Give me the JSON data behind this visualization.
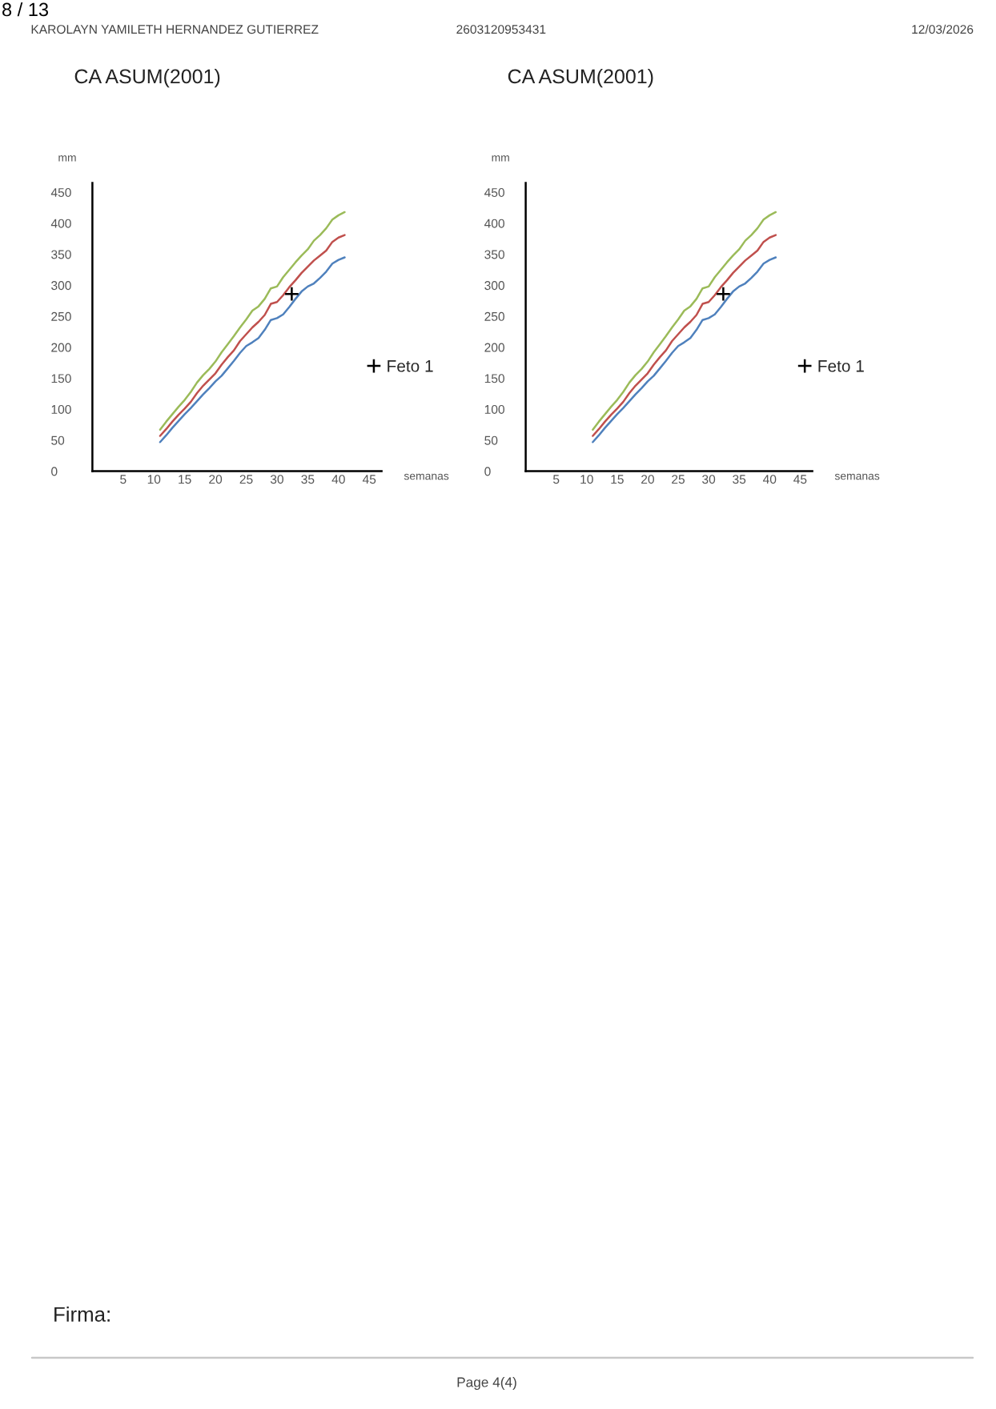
{
  "chart_data": [
    {
      "type": "line",
      "title": "CA ASUM(2001)",
      "xlabel": "semanas",
      "ylabel": "mm",
      "annotations": [
        "8 / 13",
        "KAROLAYN YAMILETH HERNANDEZ GUTIERREZ",
        "2603120953431",
        "12/03/2026",
        "Firma:",
        "Page 4(4)"
      ],
      "x": [
        11,
        12,
        13,
        14,
        15,
        16,
        17,
        18,
        19,
        20,
        21,
        22,
        23,
        24,
        25,
        26,
        27,
        28,
        29,
        30,
        31,
        32,
        33,
        34,
        35,
        36,
        37,
        38,
        39,
        40,
        41
      ],
      "series": [
        {
          "color": "#9bbb59",
          "values": [
            67,
            80,
            92,
            104,
            115,
            128,
            143,
            155,
            165,
            177,
            192,
            205,
            218,
            232,
            245,
            259,
            266,
            278,
            295,
            298,
            313,
            325,
            337,
            348,
            358,
            372,
            381,
            392,
            406,
            413,
            418
          ]
        },
        {
          "color": "#c0504d",
          "values": [
            57,
            68,
            80,
            91,
            101,
            112,
            126,
            138,
            148,
            158,
            172,
            184,
            195,
            210,
            221,
            232,
            241,
            252,
            270,
            273,
            284,
            297,
            308,
            320,
            330,
            340,
            348,
            356,
            370,
            377,
            381
          ]
        },
        {
          "color": "#4f81bd",
          "values": [
            47,
            58,
            70,
            81,
            92,
            102,
            113,
            124,
            134,
            145,
            154,
            166,
            178,
            191,
            202,
            208,
            215,
            228,
            244,
            247,
            253,
            265,
            278,
            290,
            298,
            303,
            312,
            322,
            335,
            341,
            345
          ]
        },
        {
          "type": "scatter",
          "name": "Feto 1",
          "color": "#000000",
          "marker": "cross",
          "x": [
            32.4
          ],
          "values": [
            286
          ]
        }
      ],
      "xlim": [
        0,
        47
      ],
      "ylim": [
        0,
        465
      ],
      "xticks": [
        5,
        10,
        15,
        20,
        25,
        30,
        35,
        40,
        45
      ],
      "yticks": [
        0,
        50,
        100,
        150,
        200,
        250,
        300,
        350,
        400,
        450
      ],
      "legend": "right"
    },
    {
      "type": "line",
      "title": "CA ASUM(2001)",
      "xlabel": "semanas",
      "ylabel": "mm",
      "x": [
        11,
        12,
        13,
        14,
        15,
        16,
        17,
        18,
        19,
        20,
        21,
        22,
        23,
        24,
        25,
        26,
        27,
        28,
        29,
        30,
        31,
        32,
        33,
        34,
        35,
        36,
        37,
        38,
        39,
        40,
        41
      ],
      "series": [
        {
          "color": "#9bbb59",
          "values": [
            67,
            80,
            92,
            104,
            115,
            128,
            143,
            155,
            165,
            177,
            192,
            205,
            218,
            232,
            245,
            259,
            266,
            278,
            295,
            298,
            313,
            325,
            337,
            348,
            358,
            372,
            381,
            392,
            406,
            413,
            418
          ]
        },
        {
          "color": "#c0504d",
          "values": [
            57,
            68,
            80,
            91,
            101,
            112,
            126,
            138,
            148,
            158,
            172,
            184,
            195,
            210,
            221,
            232,
            241,
            252,
            270,
            273,
            284,
            297,
            308,
            320,
            330,
            340,
            348,
            356,
            370,
            377,
            381
          ]
        },
        {
          "color": "#4f81bd",
          "values": [
            47,
            58,
            70,
            81,
            92,
            102,
            113,
            124,
            134,
            145,
            154,
            166,
            178,
            191,
            202,
            208,
            215,
            228,
            244,
            247,
            253,
            265,
            278,
            290,
            298,
            303,
            312,
            322,
            335,
            341,
            345
          ]
        },
        {
          "type": "scatter",
          "name": "Feto 1",
          "color": "#000000",
          "marker": "cross",
          "x": [
            32.4
          ],
          "values": [
            286
          ]
        }
      ],
      "xlim": [
        0,
        47
      ],
      "ylim": [
        0,
        465
      ],
      "xticks": [
        5,
        10,
        15,
        20,
        25,
        30,
        35,
        40,
        45
      ],
      "yticks": [
        0,
        50,
        100,
        150,
        200,
        250,
        300,
        350,
        400,
        450
      ],
      "legend": "right"
    }
  ]
}
